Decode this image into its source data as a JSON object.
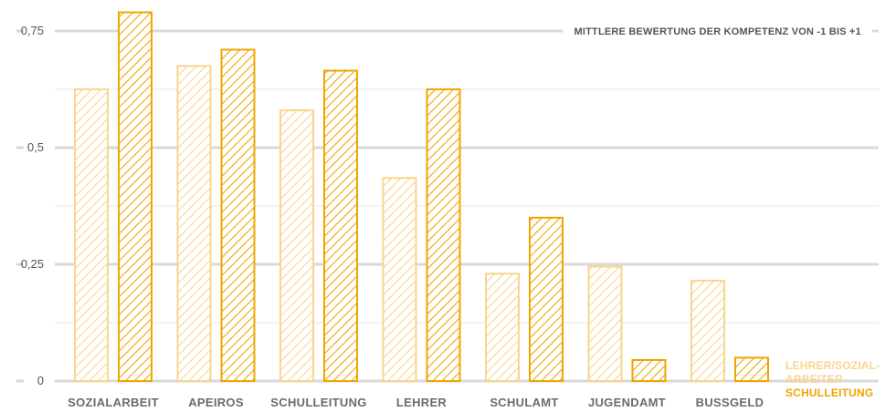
{
  "colors": {
    "series_light": "#f9d58e",
    "series_dark": "#f0a500",
    "grid_major": "#d9d9d9",
    "grid_minor": "#e6e6e6",
    "axis_text": "#555555"
  },
  "chart_data": {
    "type": "bar",
    "title": "MITTLERE BEWERTUNG DER KOMPETENZ VON -1 BIS +1",
    "categories": [
      "SOZIALARBEIT",
      "APEIROS",
      "SCHULLEITUNG",
      "LEHRER",
      "SCHULAMT",
      "JUGENDAMT",
      "BUSSGELD"
    ],
    "series": [
      {
        "name": "LEHRER/SOZIAL-ARBEITER",
        "legend_lines": [
          "LEHRER/SOZIAL-",
          "ARBEITER"
        ],
        "values": [
          0.625,
          0.675,
          0.58,
          0.435,
          0.23,
          0.245,
          0.215
        ],
        "color": "#f9d58e"
      },
      {
        "name": "SCHULLEITUNG",
        "legend_lines": [
          "SCHULLEITUNG"
        ],
        "values": [
          0.79,
          0.71,
          0.665,
          0.625,
          0.35,
          0.045,
          0.05
        ],
        "color": "#f0a500"
      }
    ],
    "yticks": [
      {
        "value": 0,
        "label": "0"
      },
      {
        "value": 0.25,
        "label": "0,25"
      },
      {
        "value": 0.5,
        "label": "0,5"
      },
      {
        "value": 0.75,
        "label": "0,75"
      }
    ],
    "minor_grid": [
      0.125,
      0.375,
      0.625
    ],
    "ylim": [
      0,
      0.8
    ],
    "grid": true,
    "legend_position": "bottom-right",
    "xlabel": "",
    "ylabel": ""
  }
}
